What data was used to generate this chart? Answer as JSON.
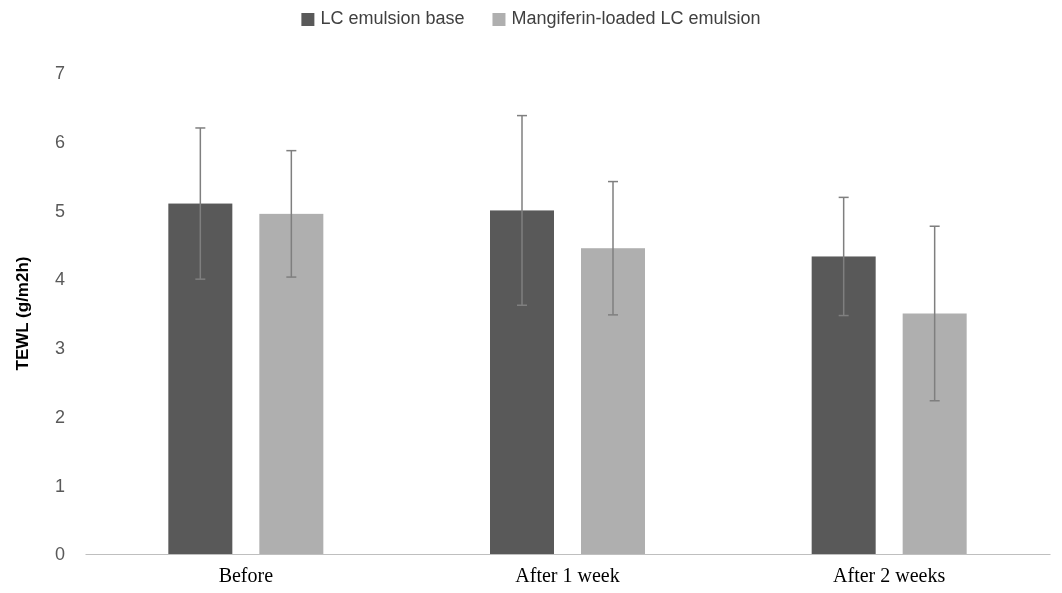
{
  "chart_data": {
    "type": "bar",
    "ylabel": "TEWL (g/m2h)",
    "categories": [
      "Before",
      "After 1 week",
      "After 2 weeks"
    ],
    "series": [
      {
        "name": "LC emulsion base",
        "color": "#595959",
        "values": [
          5.1,
          5.0,
          4.33
        ],
        "errors": [
          1.1,
          1.38,
          0.86
        ]
      },
      {
        "name": "Mangiferin-loaded LC emulsion",
        "color": "#afafaf",
        "values": [
          4.95,
          4.45,
          3.5
        ],
        "errors": [
          0.92,
          0.97,
          1.27
        ]
      }
    ],
    "ylim": [
      0,
      7
    ],
    "yticks": [
      0,
      1,
      2,
      3,
      4,
      5,
      6,
      7
    ],
    "grid": false,
    "legend": "top"
  }
}
